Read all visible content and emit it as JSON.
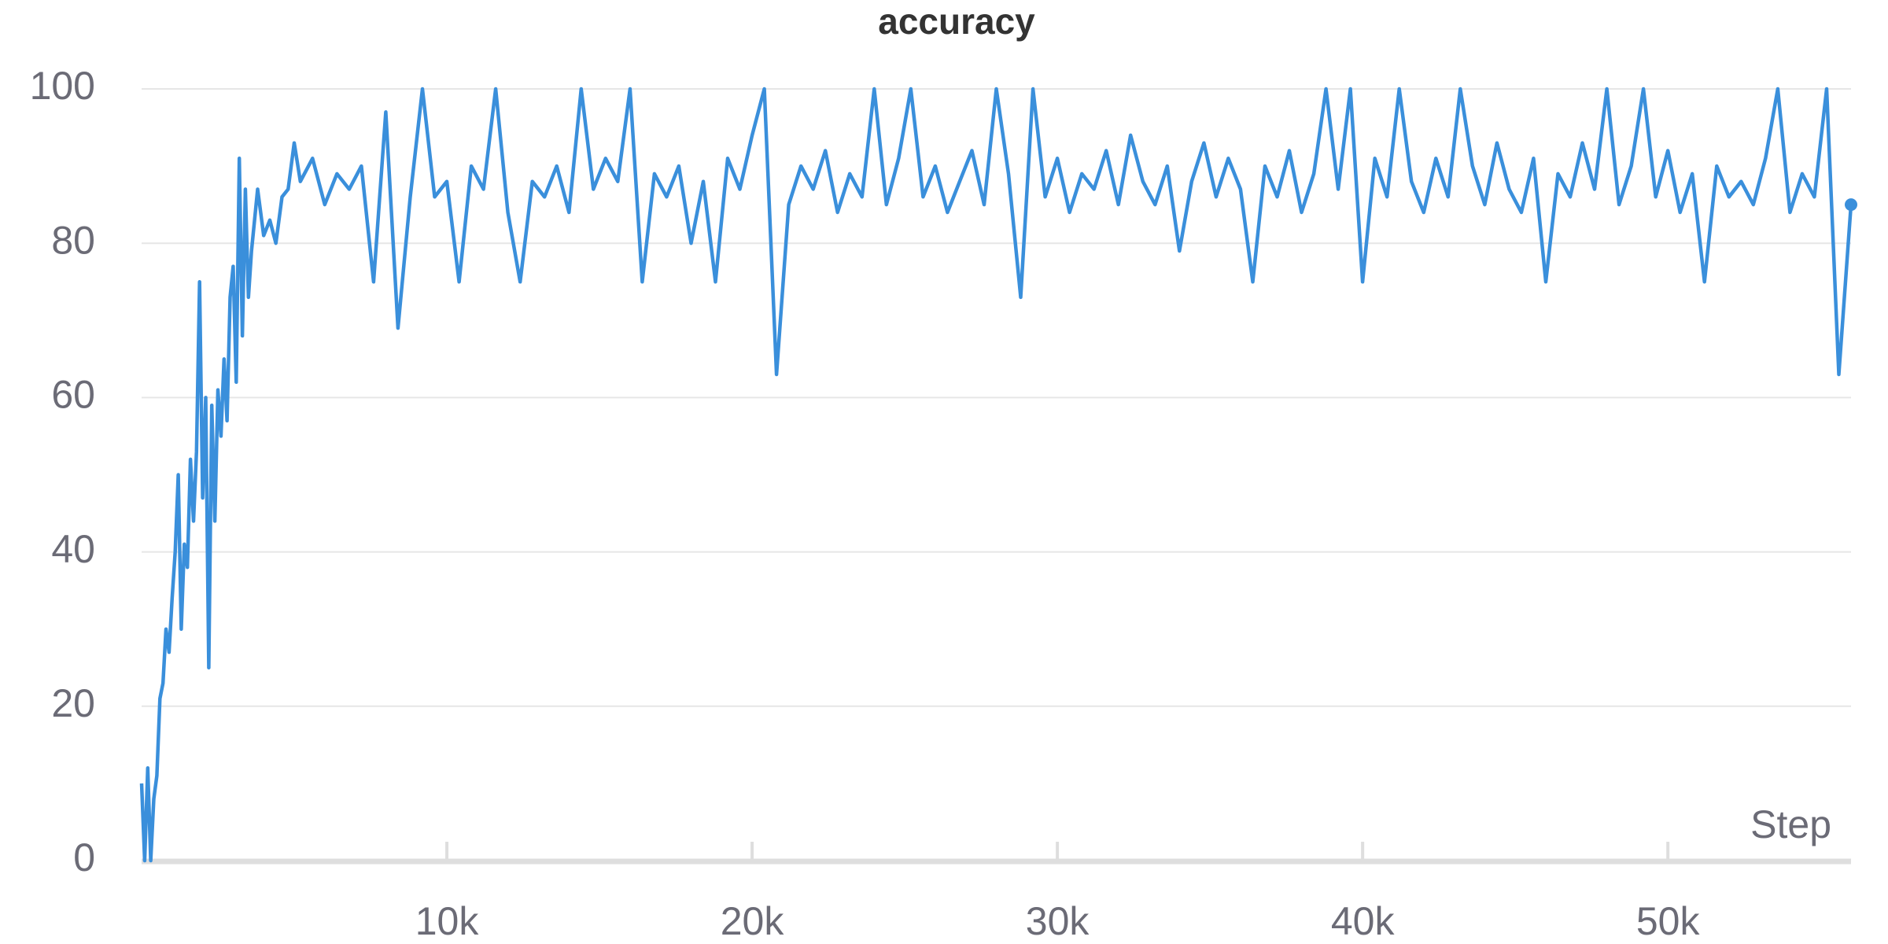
{
  "chart_data": {
    "type": "line",
    "title": "accuracy",
    "x_label": "Step",
    "x": [
      0,
      100,
      200,
      300,
      400,
      500,
      600,
      700,
      800,
      900,
      1000,
      1100,
      1200,
      1300,
      1400,
      1500,
      1600,
      1700,
      1800,
      1900,
      2000,
      2100,
      2200,
      2300,
      2400,
      2500,
      2600,
      2700,
      2800,
      2900,
      3000,
      3100,
      3200,
      3300,
      3400,
      3500,
      3600,
      3800,
      4000,
      4200,
      4400,
      4600,
      4800,
      5000,
      5200,
      5600,
      6000,
      6400,
      6800,
      7200,
      7600,
      8000,
      8400,
      8800,
      9200,
      9600,
      10000,
      10400,
      10800,
      11200,
      11600,
      12000,
      12400,
      12800,
      13200,
      13600,
      14000,
      14400,
      14800,
      15200,
      15600,
      16000,
      16400,
      16800,
      17200,
      17600,
      18000,
      18400,
      18800,
      19200,
      19600,
      20000,
      20400,
      20800,
      21200,
      21600,
      22000,
      22400,
      22800,
      23200,
      23600,
      24000,
      24400,
      24800,
      25200,
      25600,
      26000,
      26400,
      26800,
      27200,
      27600,
      28000,
      28400,
      28800,
      29200,
      29600,
      30000,
      30400,
      30800,
      31200,
      31600,
      32000,
      32400,
      32800,
      33200,
      33600,
      34000,
      34400,
      34800,
      35200,
      35600,
      36000,
      36400,
      36800,
      37200,
      37600,
      38000,
      38400,
      38800,
      39200,
      39600,
      40000,
      40400,
      40800,
      41200,
      41600,
      42000,
      42400,
      42800,
      43200,
      43600,
      44000,
      44400,
      44800,
      45200,
      45600,
      46000,
      46400,
      46800,
      47200,
      47600,
      48000,
      48400,
      48800,
      49200,
      49600,
      50000,
      50400,
      50800,
      51200,
      51600,
      52000,
      52400,
      52800,
      53200,
      53600,
      54000,
      54400,
      54800,
      55200,
      55600,
      56000
    ],
    "series": [
      {
        "name": "accuracy",
        "color": "#3a8fdb",
        "values": [
          10,
          0,
          12,
          0,
          8,
          11,
          21,
          23,
          30,
          27,
          34,
          40,
          50,
          30,
          41,
          38,
          52,
          44,
          53,
          75,
          47,
          60,
          25,
          59,
          44,
          61,
          55,
          65,
          57,
          73,
          77,
          62,
          91,
          68,
          87,
          73,
          79,
          87,
          81,
          83,
          80,
          86,
          87,
          93,
          88,
          91,
          85,
          89,
          87,
          90,
          75,
          97,
          69,
          86,
          100,
          86,
          88,
          75,
          90,
          87,
          100,
          84,
          75,
          88,
          86,
          90,
          84,
          100,
          87,
          91,
          88,
          100,
          75,
          89,
          86,
          90,
          80,
          88,
          75,
          91,
          87,
          94,
          100,
          63,
          85,
          90,
          87,
          92,
          84,
          89,
          86,
          100,
          85,
          91,
          100,
          86,
          90,
          84,
          88,
          92,
          85,
          100,
          89,
          73,
          100,
          86,
          91,
          84,
          89,
          87,
          92,
          85,
          94,
          88,
          85,
          90,
          79,
          88,
          93,
          86,
          91,
          87,
          75,
          90,
          86,
          92,
          84,
          89,
          100,
          87,
          100,
          75,
          91,
          86,
          100,
          88,
          84,
          91,
          86,
          100,
          90,
          85,
          93,
          87,
          84,
          91,
          75,
          89,
          86,
          93,
          87,
          100,
          85,
          90,
          100,
          86,
          92,
          84,
          89,
          75,
          90,
          86,
          88,
          85,
          91,
          100,
          84,
          89,
          86,
          100,
          63,
          85
        ]
      }
    ],
    "xlim": [
      0,
      56000
    ],
    "ylim": [
      0,
      100
    ],
    "xticks": [
      {
        "value": 10000,
        "label": "10k"
      },
      {
        "value": 20000,
        "label": "20k"
      },
      {
        "value": 30000,
        "label": "30k"
      },
      {
        "value": 40000,
        "label": "40k"
      },
      {
        "value": 50000,
        "label": "50k"
      }
    ],
    "yticks": [
      0,
      20,
      40,
      60,
      80,
      100
    ],
    "grid": true
  }
}
